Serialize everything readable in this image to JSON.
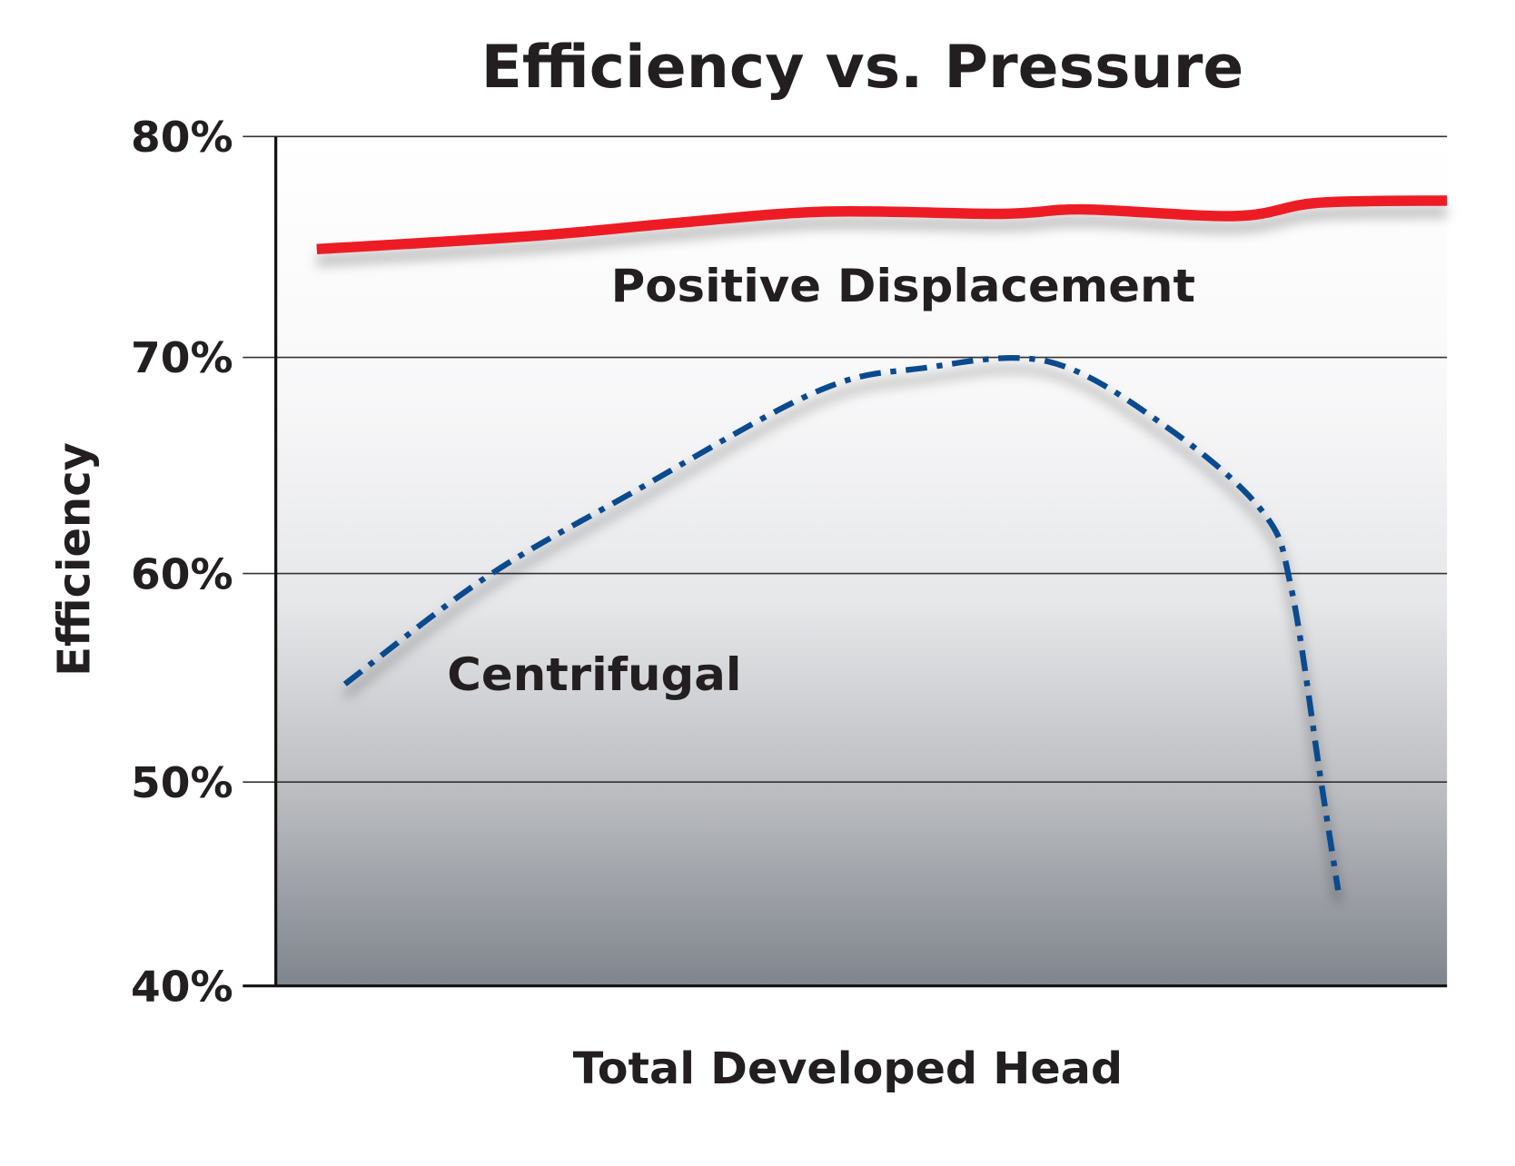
{
  "chart_data": {
    "type": "line",
    "title": "Efficiency vs. Pressure",
    "xlabel": "Total Developed Head",
    "ylabel": "Efficiency",
    "ylim": [
      40,
      80
    ],
    "xlim": [
      0,
      100
    ],
    "yticks": [
      "80%",
      "70%",
      "60%",
      "50%",
      "40%"
    ],
    "ytick_values": [
      80,
      70,
      60,
      50,
      40
    ],
    "grid": "horizontal",
    "background": "gradient white-to-gray",
    "series": [
      {
        "name": "Positive Displacement",
        "color": "#ed1c24",
        "style": "solid",
        "x": [
          3.5,
          22,
          34.5,
          47,
          62,
          69,
          82,
          89,
          100
        ],
        "y": [
          74.9,
          75.5,
          76.1,
          76.6,
          76.5,
          76.7,
          76.4,
          77.0,
          77.1
        ]
      },
      {
        "name": "Centrifugal",
        "color": "#0a4a8f",
        "style": "dash-dot",
        "x": [
          5.9,
          17.9,
          30.3,
          46.1,
          55.2,
          66,
          76,
          84.2,
          86.7,
          89.2,
          90.7
        ],
        "y": [
          54.7,
          59.8,
          63.7,
          68.4,
          69.5,
          69.8,
          66.8,
          62.9,
          59.3,
          50.2,
          44.7
        ]
      }
    ]
  }
}
